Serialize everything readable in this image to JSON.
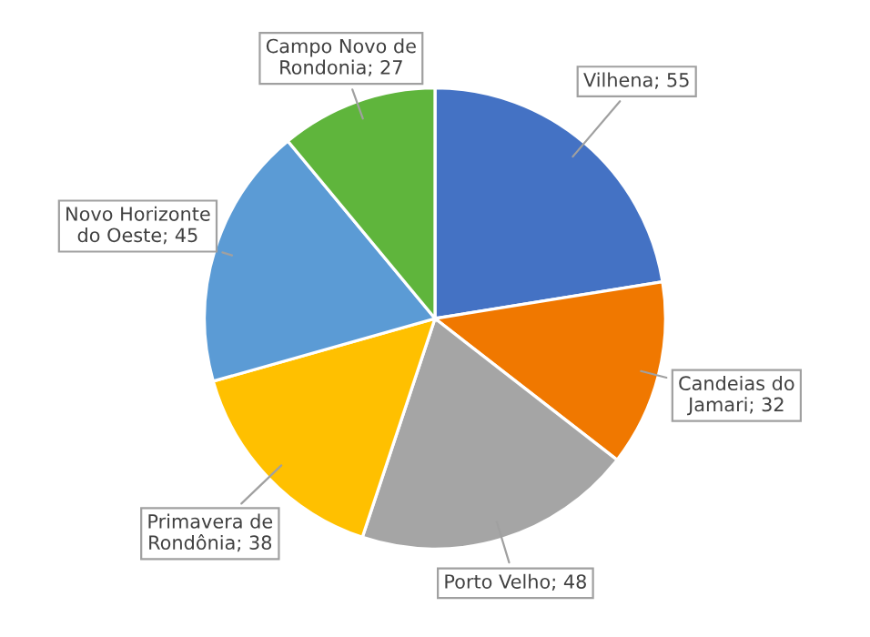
{
  "chart_data": {
    "type": "pie",
    "categories": [
      "Vilhena; 55",
      "Candeias do\nJamari; 32",
      "Porto Velho; 48",
      "Primavera de\nRondônia; 38",
      "Novo Horizonte\ndo Oeste; 45",
      "Campo Novo de\nRondonia; 27"
    ],
    "values": [
      55,
      32,
      48,
      38,
      45,
      27
    ],
    "colors": [
      "#4472c4",
      "#f07800",
      "#a5a5a5",
      "#ffc000",
      "#5b9bd5",
      "#5fb53c"
    ]
  }
}
